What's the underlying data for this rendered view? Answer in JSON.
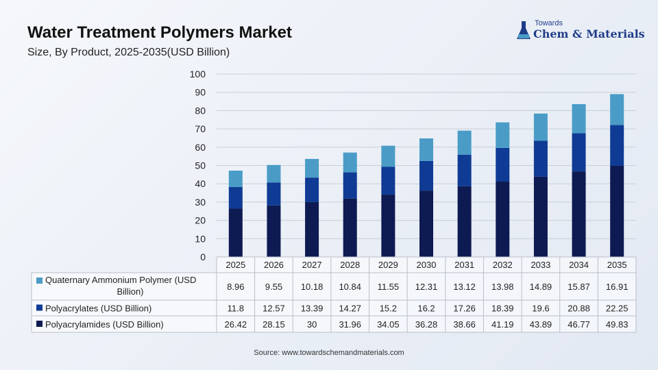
{
  "header": {
    "title": "Water Treatment Polymers Market",
    "subtitle": "Size, By Product, 2025-2035(USD Billion)"
  },
  "logo": {
    "line1": "Towards",
    "line2": "Chem & Materials"
  },
  "source": "Source: www.towardschemandmaterials.com",
  "colors": {
    "quaternary": "#4a9cc7",
    "polyacrylates": "#0f3b94",
    "polyacrylamides": "#0e1a52"
  },
  "chart_data": {
    "type": "bar",
    "stacked": true,
    "categories": [
      "2025",
      "2026",
      "2027",
      "2028",
      "2029",
      "2030",
      "2031",
      "2032",
      "2033",
      "2034",
      "2035"
    ],
    "ylim": [
      0,
      100
    ],
    "yticks": [
      0,
      10,
      20,
      30,
      40,
      50,
      60,
      70,
      80,
      90,
      100
    ],
    "grid": true,
    "legend": "table-below",
    "series": [
      {
        "name": "Polyacrylamides (USD Billion)",
        "color": "#0e1a52",
        "values": [
          26.42,
          28.15,
          30,
          31.96,
          34.05,
          36.28,
          38.66,
          41.19,
          43.89,
          46.77,
          49.83
        ]
      },
      {
        "name": "Polyacrylates (USD Billion)",
        "color": "#0f3b94",
        "values": [
          11.8,
          12.57,
          13.39,
          14.27,
          15.2,
          16.2,
          17.26,
          18.39,
          19.6,
          20.88,
          22.25
        ]
      },
      {
        "name": "Quaternary Ammonium Polymer (USD Billion)",
        "color": "#4a9cc7",
        "values": [
          8.96,
          9.55,
          10.18,
          10.84,
          11.55,
          12.31,
          13.12,
          13.98,
          14.89,
          15.87,
          16.91
        ]
      }
    ],
    "table_row_order": [
      2,
      1,
      0
    ]
  }
}
